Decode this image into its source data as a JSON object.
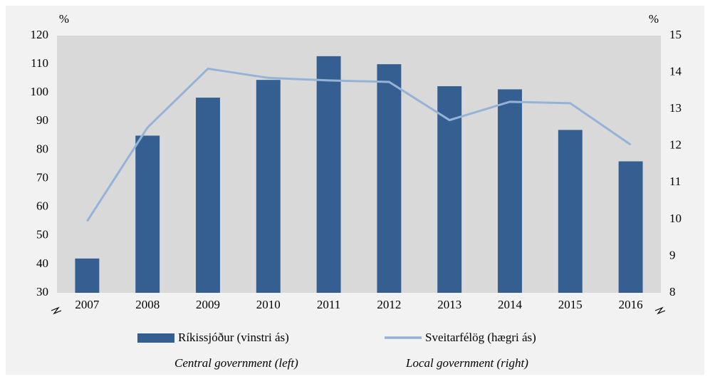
{
  "chart_data": {
    "type": "bar_line",
    "y_label": "%",
    "y2_label": "%",
    "categories": [
      "2007",
      "2008",
      "2009",
      "2010",
      "2011",
      "2012",
      "2013",
      "2014",
      "2015",
      "2016"
    ],
    "series": [
      {
        "name": "Ríkissjóður (vinstri ás)",
        "type": "bar",
        "color": "#355f91",
        "values": [
          42,
          85,
          98.3,
          104.5,
          112.8,
          110,
          102.3,
          101.2,
          87,
          76
        ]
      },
      {
        "name": "Sveitarfélög (hægri ás)",
        "type": "line",
        "axis": "y2",
        "color": "#95b3d7",
        "values": [
          9.95,
          12.5,
          14.1,
          13.85,
          13.78,
          13.74,
          12.7,
          13.2,
          13.16,
          12.03
        ]
      }
    ],
    "legend_translations": [
      "Central government (left)",
      "Local government (right)"
    ],
    "ylim": [
      30,
      120
    ],
    "yticks": [
      30,
      40,
      50,
      60,
      70,
      80,
      90,
      100,
      110,
      120
    ],
    "y2lim": [
      8,
      15
    ],
    "y2ticks": [
      8,
      9,
      10,
      11,
      12,
      13,
      14,
      15
    ]
  }
}
